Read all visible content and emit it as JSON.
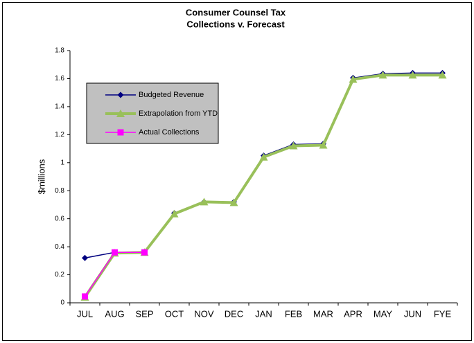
{
  "chart_data": {
    "type": "line",
    "title": [
      "Consumer Counsel Tax",
      "Collections v. Forecast"
    ],
    "y_label": "$millions",
    "categories": [
      "JUL",
      "AUG",
      "SEP",
      "OCT",
      "NOV",
      "DEC",
      "JAN",
      "FEB",
      "MAR",
      "APR",
      "MAY",
      "JUN",
      "FYE"
    ],
    "ylim": [
      0,
      1.8
    ],
    "yticks": [
      0,
      0.2,
      0.4,
      0.6,
      0.8,
      1,
      1.2,
      1.4,
      1.6,
      1.8
    ],
    "grid": false,
    "legend": "upper-left",
    "series": [
      {
        "name": "Budgeted Revenue",
        "color": "#000080",
        "marker": "diamond",
        "width": 1.5,
        "values": [
          0.32,
          0.36,
          0.365,
          0.64,
          0.72,
          0.72,
          1.05,
          1.13,
          1.135,
          1.605,
          1.635,
          1.64,
          1.64
        ]
      },
      {
        "name": "Extrapolation from YTD",
        "color": "#99c05a",
        "marker": "triangle",
        "width": 4,
        "values": [
          0.04,
          0.355,
          0.36,
          0.635,
          0.72,
          0.715,
          1.04,
          1.12,
          1.125,
          1.595,
          1.625,
          1.625,
          1.625
        ]
      },
      {
        "name": "Actual Collections",
        "color": "#ff00ff",
        "marker": "square",
        "width": 1.5,
        "values": [
          0.045,
          0.36,
          0.36,
          null,
          null,
          null,
          null,
          null,
          null,
          null,
          null,
          null,
          null
        ]
      }
    ]
  }
}
